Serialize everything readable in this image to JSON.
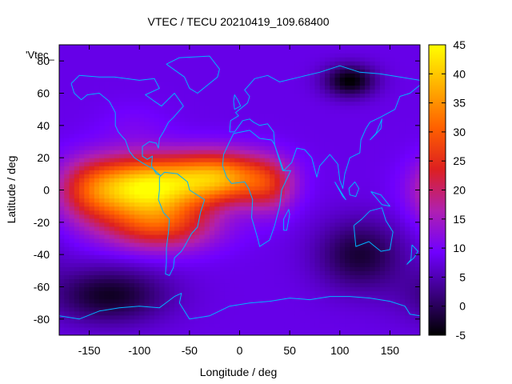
{
  "chart_data": {
    "type": "heatmap",
    "title": "VTEC / TECU 20210419_109.68400",
    "xlabel": "Longitude / deg",
    "ylabel": "Latitude / deg",
    "key_label": "'Vtec_",
    "xlim": [
      -180,
      180
    ],
    "ylim": [
      -90,
      90
    ],
    "x_ticks": [
      -150,
      -100,
      -50,
      0,
      50,
      100,
      150
    ],
    "y_ticks": [
      -80,
      -60,
      -40,
      -20,
      0,
      20,
      40,
      60,
      80
    ],
    "colorbar": {
      "min": -5,
      "max": 45,
      "ticks": [
        -5,
        0,
        5,
        10,
        15,
        20,
        25,
        30,
        35,
        40,
        45
      ],
      "palette": [
        "#000000",
        "#3a0080",
        "#7000ff",
        "#b020b0",
        "#dd2020",
        "#ff6000",
        "#ffb000",
        "#ffff00"
      ]
    },
    "background_level": 8,
    "features": [
      {
        "name": "equatorial-anomaly-americas",
        "lon": -95,
        "lat": 2,
        "peak": 41,
        "sigma_lon": 38,
        "sigma_lat": 13
      },
      {
        "name": "equatorial-anomaly-atlantic",
        "lon": -20,
        "lat": 8,
        "peak": 35,
        "sigma_lon": 35,
        "sigma_lat": 11
      },
      {
        "name": "southern-crest",
        "lon": -80,
        "lat": -22,
        "peak": 25,
        "sigma_lon": 40,
        "sigma_lat": 11
      },
      {
        "name": "pacific-tail",
        "lon": -150,
        "lat": 0,
        "peak": 20,
        "sigma_lon": 25,
        "sigma_lat": 14
      },
      {
        "name": "africa-extension",
        "lon": 30,
        "lat": 2,
        "peak": 18,
        "sigma_lon": 18,
        "sigma_lat": 12
      },
      {
        "name": "north-america-tongue",
        "lon": -105,
        "lat": 40,
        "peak": 10,
        "sigma_lon": 25,
        "sigma_lat": 10
      },
      {
        "name": "depletion-north-pacific",
        "lon": 110,
        "lat": 68,
        "peak": -5,
        "sigma_lon": 18,
        "sigma_lat": 7
      },
      {
        "name": "depletion-southern",
        "lon": -130,
        "lat": -65,
        "peak": -3,
        "sigma_lon": 40,
        "sigma_lat": 12
      },
      {
        "name": "depletion-indian",
        "lon": 120,
        "lat": -40,
        "peak": -2,
        "sigma_lon": 30,
        "sigma_lat": 15
      }
    ],
    "coastlines": [
      {
        "name": "north-america",
        "points": [
          [
            -168,
            66
          ],
          [
            -160,
            71
          ],
          [
            -140,
            70
          ],
          [
            -125,
            70
          ],
          [
            -100,
            68
          ],
          [
            -85,
            69
          ],
          [
            -80,
            63
          ],
          [
            -94,
            59
          ],
          [
            -85,
            55
          ],
          [
            -78,
            52
          ],
          [
            -65,
            60
          ],
          [
            -56,
            52
          ],
          [
            -66,
            45
          ],
          [
            -71,
            42
          ],
          [
            -76,
            36
          ],
          [
            -80,
            32
          ],
          [
            -81,
            26
          ],
          [
            -83,
            29
          ],
          [
            -90,
            30
          ],
          [
            -97,
            27
          ],
          [
            -97,
            21
          ],
          [
            -92,
            19
          ],
          [
            -87,
            21
          ],
          [
            -88,
            15
          ],
          [
            -83,
            10
          ],
          [
            -79,
            9
          ],
          [
            -86,
            13
          ],
          [
            -95,
            16
          ],
          [
            -105,
            20
          ],
          [
            -110,
            24
          ],
          [
            -114,
            31
          ],
          [
            -117,
            33
          ],
          [
            -121,
            36
          ],
          [
            -124,
            40
          ],
          [
            -124,
            48
          ],
          [
            -130,
            55
          ],
          [
            -140,
            60
          ],
          [
            -152,
            59
          ],
          [
            -158,
            56
          ],
          [
            -165,
            60
          ],
          [
            -168,
            66
          ]
        ]
      },
      {
        "name": "greenland",
        "points": [
          [
            -73,
            78
          ],
          [
            -60,
            82
          ],
          [
            -30,
            83
          ],
          [
            -20,
            75
          ],
          [
            -22,
            70
          ],
          [
            -42,
            60
          ],
          [
            -50,
            63
          ],
          [
            -55,
            70
          ],
          [
            -73,
            78
          ]
        ]
      },
      {
        "name": "south-america",
        "points": [
          [
            -80,
            8
          ],
          [
            -75,
            11
          ],
          [
            -62,
            10
          ],
          [
            -52,
            5
          ],
          [
            -50,
            0
          ],
          [
            -45,
            -2
          ],
          [
            -35,
            -6
          ],
          [
            -39,
            -14
          ],
          [
            -42,
            -23
          ],
          [
            -48,
            -27
          ],
          [
            -55,
            -35
          ],
          [
            -58,
            -38
          ],
          [
            -65,
            -42
          ],
          [
            -66,
            -48
          ],
          [
            -70,
            -53
          ],
          [
            -74,
            -52
          ],
          [
            -73,
            -45
          ],
          [
            -73,
            -36
          ],
          [
            -71,
            -26
          ],
          [
            -70,
            -18
          ],
          [
            -76,
            -14
          ],
          [
            -81,
            -6
          ],
          [
            -80,
            0
          ],
          [
            -80,
            8
          ]
        ]
      },
      {
        "name": "africa",
        "points": [
          [
            -17,
            15
          ],
          [
            -16,
            22
          ],
          [
            -10,
            30
          ],
          [
            -6,
            35
          ],
          [
            10,
            37
          ],
          [
            20,
            32
          ],
          [
            32,
            31
          ],
          [
            35,
            28
          ],
          [
            43,
            12
          ],
          [
            51,
            12
          ],
          [
            42,
            0
          ],
          [
            40,
            -10
          ],
          [
            35,
            -22
          ],
          [
            30,
            -31
          ],
          [
            20,
            -35
          ],
          [
            18,
            -30
          ],
          [
            12,
            -17
          ],
          [
            13,
            -6
          ],
          [
            9,
            1
          ],
          [
            5,
            5
          ],
          [
            -8,
            4
          ],
          [
            -13,
            8
          ],
          [
            -17,
            15
          ]
        ]
      },
      {
        "name": "eurasia",
        "points": [
          [
            -10,
            36
          ],
          [
            -9,
            43
          ],
          [
            -1,
            46
          ],
          [
            -4,
            48
          ],
          [
            2,
            51
          ],
          [
            8,
            54
          ],
          [
            10,
            58
          ],
          [
            5,
            62
          ],
          [
            15,
            69
          ],
          [
            28,
            71
          ],
          [
            40,
            67
          ],
          [
            60,
            70
          ],
          [
            80,
            73
          ],
          [
            100,
            77
          ],
          [
            120,
            73
          ],
          [
            140,
            72
          ],
          [
            160,
            70
          ],
          [
            180,
            68
          ],
          [
            180,
            65
          ],
          [
            170,
            60
          ],
          [
            160,
            58
          ],
          [
            155,
            50
          ],
          [
            140,
            45
          ],
          [
            130,
            42
          ],
          [
            126,
            38
          ],
          [
            121,
            31
          ],
          [
            120,
            23
          ],
          [
            110,
            20
          ],
          [
            105,
            10
          ],
          [
            103,
            1
          ],
          [
            100,
            6
          ],
          [
            98,
            16
          ],
          [
            90,
            22
          ],
          [
            80,
            15
          ],
          [
            77,
            8
          ],
          [
            72,
            20
          ],
          [
            65,
            25
          ],
          [
            57,
            26
          ],
          [
            52,
            17
          ],
          [
            44,
            12
          ],
          [
            35,
            28
          ],
          [
            34,
            36
          ],
          [
            28,
            41
          ],
          [
            20,
            40
          ],
          [
            14,
            42
          ],
          [
            10,
            44
          ],
          [
            3,
            43
          ],
          [
            -5,
            36
          ],
          [
            -10,
            36
          ]
        ]
      },
      {
        "name": "australia",
        "points": [
          [
            114,
            -22
          ],
          [
            122,
            -18
          ],
          [
            130,
            -13
          ],
          [
            136,
            -12
          ],
          [
            142,
            -11
          ],
          [
            146,
            -19
          ],
          [
            153,
            -26
          ],
          [
            150,
            -37
          ],
          [
            141,
            -38
          ],
          [
            135,
            -35
          ],
          [
            129,
            -32
          ],
          [
            116,
            -35
          ],
          [
            114,
            -22
          ]
        ]
      },
      {
        "name": "british-isles",
        "points": [
          [
            -5,
            50
          ],
          [
            1,
            52
          ],
          [
            -2,
            56
          ],
          [
            -5,
            59
          ],
          [
            -6,
            55
          ],
          [
            -5,
            50
          ]
        ]
      },
      {
        "name": "madagascar",
        "points": [
          [
            44,
            -25
          ],
          [
            47,
            -25
          ],
          [
            50,
            -15
          ],
          [
            49,
            -12
          ],
          [
            44,
            -18
          ],
          [
            44,
            -25
          ]
        ]
      },
      {
        "name": "japan",
        "points": [
          [
            130,
            31
          ],
          [
            135,
            34
          ],
          [
            141,
            38
          ],
          [
            142,
            44
          ],
          [
            140,
            41
          ],
          [
            136,
            35
          ],
          [
            130,
            31
          ]
        ]
      },
      {
        "name": "borneo",
        "points": [
          [
            109,
            1
          ],
          [
            115,
            5
          ],
          [
            119,
            1
          ],
          [
            116,
            -4
          ],
          [
            110,
            -3
          ],
          [
            109,
            1
          ]
        ]
      },
      {
        "name": "sumatra",
        "points": [
          [
            95,
            5
          ],
          [
            106,
            -6
          ],
          [
            103,
            -4
          ],
          [
            95,
            5
          ]
        ]
      },
      {
        "name": "new-guinea",
        "points": [
          [
            131,
            -1
          ],
          [
            141,
            -3
          ],
          [
            150,
            -10
          ],
          [
            142,
            -9
          ],
          [
            131,
            -1
          ]
        ]
      },
      {
        "name": "new-zealand",
        "points": [
          [
            172,
            -34
          ],
          [
            178,
            -38
          ],
          [
            174,
            -42
          ],
          [
            167,
            -46
          ],
          [
            171,
            -43
          ],
          [
            172,
            -34
          ]
        ]
      },
      {
        "name": "antarctica",
        "points": [
          [
            -180,
            -78
          ],
          [
            -160,
            -80
          ],
          [
            -140,
            -75
          ],
          [
            -120,
            -73
          ],
          [
            -100,
            -72
          ],
          [
            -80,
            -73
          ],
          [
            -65,
            -66
          ],
          [
            -58,
            -64
          ],
          [
            -60,
            -70
          ],
          [
            -50,
            -80
          ],
          [
            -30,
            -78
          ],
          [
            -10,
            -72
          ],
          [
            10,
            -70
          ],
          [
            30,
            -69
          ],
          [
            50,
            -67
          ],
          [
            70,
            -68
          ],
          [
            90,
            -66
          ],
          [
            110,
            -66
          ],
          [
            130,
            -67
          ],
          [
            150,
            -69
          ],
          [
            165,
            -72
          ],
          [
            170,
            -77
          ],
          [
            180,
            -78
          ]
        ]
      }
    ]
  }
}
